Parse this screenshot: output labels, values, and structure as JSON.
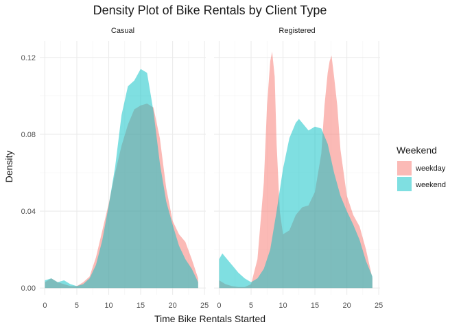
{
  "chart_data": {
    "type": "area",
    "title": "Density Plot of Bike Rentals by Client Type",
    "xlabel": "Time Bike Rentals Started",
    "ylabel": "Density",
    "xlim": [
      0,
      24
    ],
    "ylim": [
      0,
      0.125
    ],
    "x_ticks": [
      0,
      5,
      10,
      15,
      20,
      25
    ],
    "y_ticks": [
      0.0,
      0.04,
      0.08,
      0.12
    ],
    "y_tick_labels": [
      "0.00",
      "0.04",
      "0.08",
      "0.12"
    ],
    "grid": true,
    "legend": {
      "title": "Weekend",
      "placement": "right",
      "entries": [
        {
          "label": "weekday",
          "color": "#F8766D"
        },
        {
          "label": "weekend",
          "color": "#00BFC4"
        }
      ]
    },
    "facets": [
      {
        "label": "Casual",
        "series": [
          {
            "name": "weekday",
            "color": "#F8766D",
            "points": [
              [
                0,
                0.003
              ],
              [
                1,
                0.005
              ],
              [
                2,
                0.003
              ],
              [
                3,
                0.002
              ],
              [
                4,
                0.001
              ],
              [
                5,
                0.001
              ],
              [
                6,
                0.003
              ],
              [
                7,
                0.006
              ],
              [
                8,
                0.016
              ],
              [
                9,
                0.03
              ],
              [
                10,
                0.044
              ],
              [
                11,
                0.06
              ],
              [
                12,
                0.074
              ],
              [
                13,
                0.085
              ],
              [
                14,
                0.093
              ],
              [
                15,
                0.095
              ],
              [
                16,
                0.096
              ],
              [
                17,
                0.094
              ],
              [
                18,
                0.078
              ],
              [
                19,
                0.052
              ],
              [
                20,
                0.035
              ],
              [
                21,
                0.028
              ],
              [
                22,
                0.024
              ],
              [
                23,
                0.015
              ],
              [
                24,
                0.005
              ]
            ]
          },
          {
            "name": "weekend",
            "color": "#00BFC4",
            "points": [
              [
                0,
                0.004
              ],
              [
                1,
                0.005
              ],
              [
                2,
                0.003
              ],
              [
                3,
                0.004
              ],
              [
                4,
                0.002
              ],
              [
                5,
                0.001
              ],
              [
                6,
                0.002
              ],
              [
                7,
                0.005
              ],
              [
                8,
                0.012
              ],
              [
                9,
                0.025
              ],
              [
                10,
                0.043
              ],
              [
                11,
                0.063
              ],
              [
                12,
                0.09
              ],
              [
                13,
                0.105
              ],
              [
                14,
                0.108
              ],
              [
                15,
                0.114
              ],
              [
                16,
                0.112
              ],
              [
                17,
                0.092
              ],
              [
                18,
                0.065
              ],
              [
                19,
                0.045
              ],
              [
                20,
                0.033
              ],
              [
                21,
                0.022
              ],
              [
                22,
                0.015
              ],
              [
                23,
                0.01
              ],
              [
                24,
                0.003
              ]
            ]
          }
        ]
      },
      {
        "label": "Registered",
        "series": [
          {
            "name": "weekday",
            "color": "#F8766D",
            "points": [
              [
                0,
                0.004
              ],
              [
                1,
                0.002
              ],
              [
                2,
                0.001
              ],
              [
                3,
                0.0005
              ],
              [
                4,
                0.0005
              ],
              [
                5,
                0.002
              ],
              [
                6,
                0.015
              ],
              [
                7,
                0.055
              ],
              [
                7.5,
                0.095
              ],
              [
                8,
                0.118
              ],
              [
                8.3,
                0.123
              ],
              [
                8.7,
                0.11
              ],
              [
                9,
                0.075
              ],
              [
                9.5,
                0.04
              ],
              [
                10,
                0.028
              ],
              [
                11,
                0.03
              ],
              [
                12,
                0.038
              ],
              [
                13,
                0.042
              ],
              [
                14,
                0.043
              ],
              [
                15,
                0.05
              ],
              [
                16,
                0.07
              ],
              [
                16.5,
                0.095
              ],
              [
                17,
                0.112
              ],
              [
                17.3,
                0.118
              ],
              [
                17.6,
                0.121
              ],
              [
                18,
                0.11
              ],
              [
                18.5,
                0.095
              ],
              [
                19,
                0.072
              ],
              [
                20,
                0.048
              ],
              [
                21,
                0.038
              ],
              [
                22,
                0.032
              ],
              [
                23,
                0.02
              ],
              [
                24,
                0.005
              ]
            ]
          },
          {
            "name": "weekend",
            "color": "#00BFC4",
            "points": [
              [
                0,
                0.015
              ],
              [
                0.5,
                0.018
              ],
              [
                1,
                0.016
              ],
              [
                2,
                0.012
              ],
              [
                3,
                0.008
              ],
              [
                4,
                0.005
              ],
              [
                5,
                0.003
              ],
              [
                6,
                0.005
              ],
              [
                7,
                0.01
              ],
              [
                8,
                0.02
              ],
              [
                9,
                0.04
              ],
              [
                10,
                0.062
              ],
              [
                11,
                0.078
              ],
              [
                12,
                0.086
              ],
              [
                12.5,
                0.088
              ],
              [
                13,
                0.086
              ],
              [
                14,
                0.082
              ],
              [
                15,
                0.084
              ],
              [
                16,
                0.083
              ],
              [
                17,
                0.075
              ],
              [
                18,
                0.06
              ],
              [
                19,
                0.048
              ],
              [
                20,
                0.04
              ],
              [
                21,
                0.033
              ],
              [
                22,
                0.025
              ],
              [
                23,
                0.014
              ],
              [
                24,
                0.006
              ]
            ]
          }
        ]
      }
    ]
  }
}
